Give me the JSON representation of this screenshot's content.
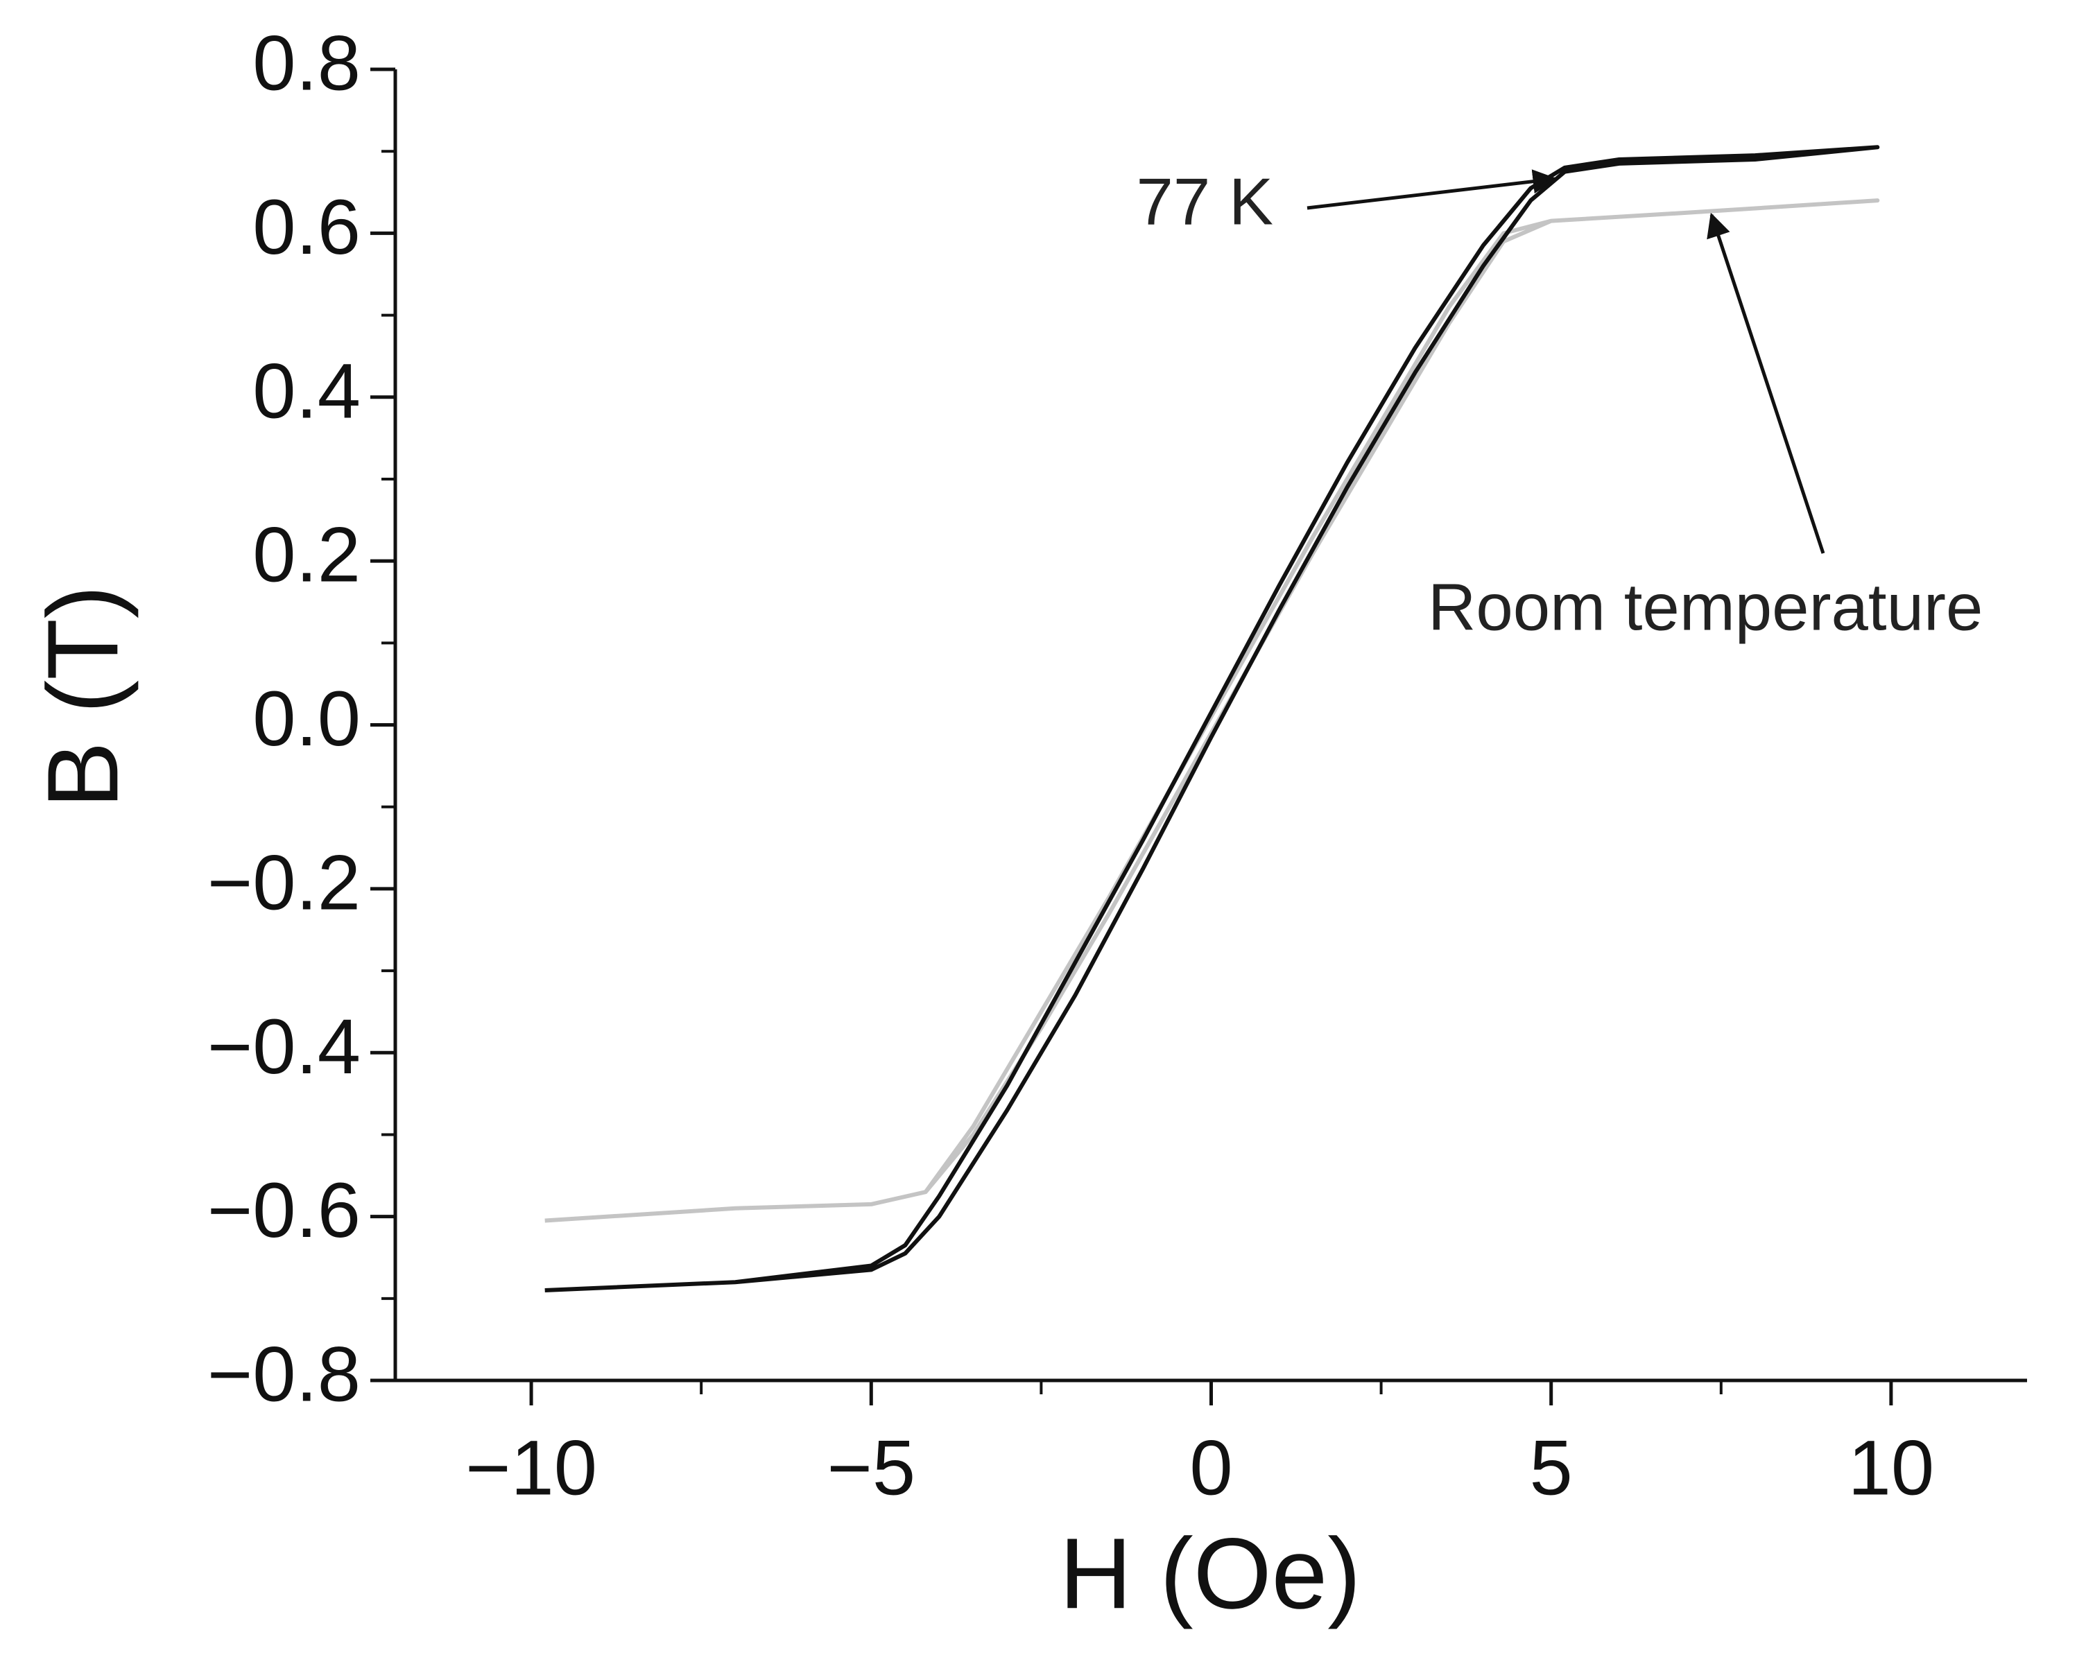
{
  "chart_data": {
    "type": "line",
    "x_label": "H (Oe)",
    "y_label": "B (T)",
    "xlim": [
      -12,
      12
    ],
    "ylim": [
      -0.8,
      0.8
    ],
    "xticks": [
      {
        "value": -10,
        "label": "−10"
      },
      {
        "value": -5,
        "label": "−5"
      },
      0,
      5,
      10
    ],
    "minor_xticks": [
      -7.5,
      -2.5,
      2.5,
      7.5
    ],
    "yticks": [
      {
        "value": -0.8,
        "label": "−0.8"
      },
      {
        "value": -0.6,
        "label": "−0.6"
      },
      {
        "value": -0.4,
        "label": "−0.4"
      },
      {
        "value": -0.2,
        "label": "−0.2"
      },
      {
        "value": 0,
        "label": "0.0"
      },
      0.2,
      0.4,
      0.6,
      0.8
    ],
    "minor_yticks": [
      -0.7,
      -0.5,
      -0.3,
      -0.1,
      0.1,
      0.3,
      0.5,
      0.7
    ],
    "series": [
      {
        "name": "77 K",
        "color": "#111111",
        "x": [
          -9.8,
          -7,
          -5,
          -4.5,
          -4,
          -3,
          -2,
          -1,
          0,
          1,
          2,
          3,
          4,
          4.7,
          5.2,
          6,
          8,
          9.8,
          9.8,
          8,
          6,
          5.2,
          4.7,
          4,
          3,
          2,
          1,
          0,
          -1,
          -2,
          -3,
          -4,
          -4.5,
          -5,
          -7,
          -9.8
        ],
        "values": [
          -0.69,
          -0.68,
          -0.665,
          -0.645,
          -0.6,
          -0.47,
          -0.33,
          -0.175,
          -0.015,
          0.14,
          0.29,
          0.43,
          0.56,
          0.64,
          0.675,
          0.685,
          0.69,
          0.705,
          0.705,
          0.695,
          0.69,
          0.68,
          0.655,
          0.585,
          0.46,
          0.32,
          0.17,
          0.015,
          -0.14,
          -0.29,
          -0.44,
          -0.575,
          -0.635,
          -0.66,
          -0.68,
          -0.69
        ]
      },
      {
        "name": "Room temperature",
        "color": "#c4c4c4",
        "x": [
          -9.8,
          -7,
          -5,
          -4.2,
          -3.5,
          -2.5,
          -1.5,
          0,
          1.5,
          2.5,
          3.5,
          4.3,
          5,
          7,
          9.8,
          9.8,
          7,
          5,
          4.3,
          3.5,
          2.5,
          1.5,
          0,
          -1.5,
          -2.5,
          -3.5,
          -4.2,
          -5,
          -7,
          -9.8
        ],
        "values": [
          -0.605,
          -0.59,
          -0.585,
          -0.57,
          -0.5,
          -0.37,
          -0.23,
          -0.01,
          0.21,
          0.35,
          0.49,
          0.59,
          0.615,
          0.625,
          0.64,
          0.64,
          0.625,
          0.615,
          0.6,
          0.51,
          0.37,
          0.23,
          0.01,
          -0.21,
          -0.35,
          -0.49,
          -0.57,
          -0.585,
          -0.59,
          -0.605
        ]
      }
    ]
  }
}
